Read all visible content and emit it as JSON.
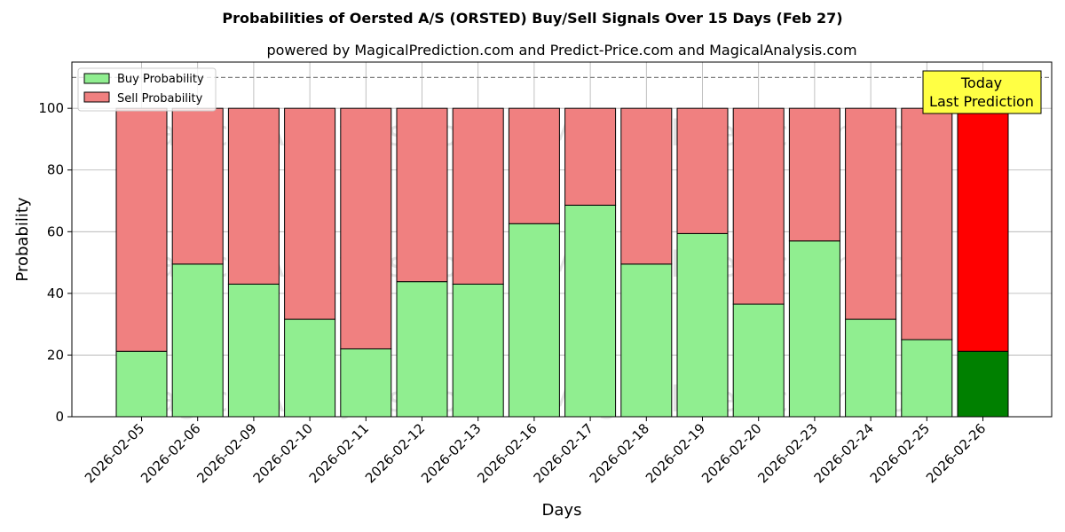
{
  "chart_data": {
    "type": "bar",
    "stacked": true,
    "title": "Probabilities of Oersted A/S (ORSTED) Buy/Sell Signals Over 15 Days (Feb 27)",
    "subtitle": "powered by MagicalPrediction.com and Predict-Price.com and MagicalAnalysis.com",
    "xlabel": "Days",
    "ylabel": "Probability",
    "ylim": [
      0,
      115
    ],
    "yticks": [
      0,
      20,
      40,
      60,
      80,
      100
    ],
    "grid": true,
    "legend_position": "top-left",
    "reference_line": 110,
    "categories": [
      "2026-02-05",
      "2026-02-06",
      "2026-02-09",
      "2026-02-10",
      "2026-02-11",
      "2026-02-12",
      "2026-02-13",
      "2026-02-16",
      "2026-02-17",
      "2026-02-18",
      "2026-02-19",
      "2026-02-20",
      "2026-02-23",
      "2026-02-24",
      "2026-02-25",
      "2026-02-26"
    ],
    "series": [
      {
        "name": "Buy Probability",
        "color": "#90ee90",
        "highlight_color": "#008000",
        "values": [
          21.2,
          49.5,
          43,
          31.6,
          22,
          43.8,
          43,
          62.6,
          68.6,
          49.5,
          59.4,
          36.5,
          57,
          31.6,
          25,
          21.2
        ]
      },
      {
        "name": "Sell Probability",
        "color": "#f08080",
        "highlight_color": "#ff0000",
        "values": [
          78.8,
          50.5,
          57,
          68.4,
          78,
          56.2,
          57,
          37.4,
          31.4,
          50.5,
          40.6,
          63.5,
          43,
          68.4,
          75,
          78.8
        ]
      }
    ],
    "highlight_index": 15,
    "annotation": {
      "line1": "Today",
      "line2": "Last Prediction",
      "color": "#ffff44"
    },
    "watermarks": [
      "MagicalAnalysis.com",
      "MagicalPrediction.com"
    ]
  }
}
